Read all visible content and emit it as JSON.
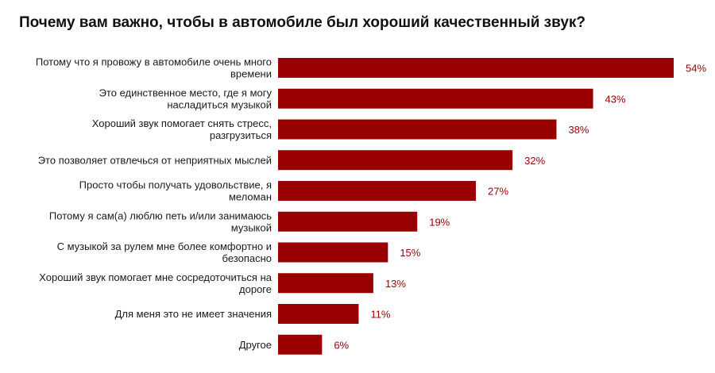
{
  "chart_data": {
    "type": "bar",
    "orientation": "horizontal",
    "title": "Почему вам важно, чтобы в автомобиле был хороший качественный звук?",
    "xlabel": "",
    "ylabel": "",
    "value_format": "percent",
    "bar_color": "#990000",
    "label_color": "#990000",
    "grid": false,
    "legend": "none",
    "categories": [
      [
        "Потому что я провожу в автомобиле очень много",
        "времени"
      ],
      [
        "Это единственное место, где я могу",
        "насладиться музыкой"
      ],
      [
        "Хороший звук помогает снять стресс,",
        "разгрузиться"
      ],
      [
        "Это позволяет отвлечься от неприятных мыслей"
      ],
      [
        "Просто чтобы получать удовольствие, я",
        "меломан"
      ],
      [
        "Потому я сам(а) люблю петь и/или занимаюсь",
        "музыкой"
      ],
      [
        "С музыкой за рулем мне более комфортно и",
        "безопасно"
      ],
      [
        "Хороший звук помогает мне сосредоточиться на",
        "дороге"
      ],
      [
        "Для меня это не имеет значения"
      ],
      [
        "Другое"
      ]
    ],
    "values": [
      54,
      43,
      38,
      32,
      27,
      19,
      15,
      13,
      11,
      6
    ],
    "value_labels": [
      "54%",
      "43%",
      "38%",
      "32%",
      "27%",
      "19%",
      "15%",
      "13%",
      "11%",
      "6%"
    ]
  }
}
